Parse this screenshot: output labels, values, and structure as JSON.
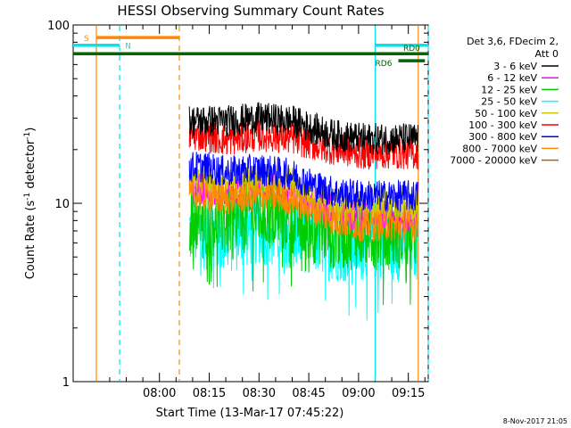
{
  "chart_data": {
    "type": "line",
    "title": "HESSI Observing Summary Count Rates",
    "xlabel": "Start Time (13-Mar-17 07:45:22)",
    "ylabel_main": "Count Rate (s",
    "ylabel_sup1": "-1",
    "ylabel_mid": " detector",
    "ylabel_sup2": "-1",
    "ylabel_end": ")",
    "y_scale": "log",
    "ylim": [
      1,
      100
    ],
    "xlim_minutes": [
      -11,
      96
    ],
    "x_ticks": [
      {
        "label": "08:00",
        "t": 15
      },
      {
        "label": "08:15",
        "t": 30
      },
      {
        "label": "08:30",
        "t": 45
      },
      {
        "label": "08:45",
        "t": 60
      },
      {
        "label": "09:00",
        "t": 75
      },
      {
        "label": "09:15",
        "t": 90
      }
    ],
    "y_ticks": [
      {
        "label": "1",
        "v": 1
      },
      {
        "label": "10",
        "v": 10
      },
      {
        "label": "100",
        "v": 100
      }
    ],
    "legend": {
      "header1": "Det 3,6, FDecim 2,",
      "header2": "Att 0"
    },
    "series": [
      {
        "name": "3 - 6 keV",
        "color": "#000000",
        "points": [
          [
            28,
            29
          ],
          [
            35,
            29
          ],
          [
            45,
            30
          ],
          [
            55,
            29
          ],
          [
            62,
            26
          ],
          [
            68,
            24
          ],
          [
            76,
            23
          ]
        ]
      },
      {
        "name": "6 - 12 keV",
        "color": "#ff00ff",
        "points": [
          [
            28,
            12
          ],
          [
            35,
            11.5
          ],
          [
            45,
            13
          ],
          [
            55,
            12
          ],
          [
            62,
            10
          ],
          [
            68,
            9
          ],
          [
            76,
            8.5
          ]
        ]
      },
      {
        "name": "12 - 25 keV",
        "color": "#00cc00",
        "points": [
          [
            28,
            8.5
          ],
          [
            35,
            8
          ],
          [
            45,
            9
          ],
          [
            55,
            8.5
          ],
          [
            62,
            7.5
          ],
          [
            68,
            7
          ],
          [
            76,
            7
          ]
        ]
      },
      {
        "name": "25 - 50 keV",
        "color": "#00ffff",
        "points": [
          [
            28,
            7
          ],
          [
            35,
            6.5
          ],
          [
            45,
            7.5
          ],
          [
            55,
            7
          ],
          [
            62,
            6.5
          ],
          [
            68,
            6
          ],
          [
            76,
            6
          ]
        ]
      },
      {
        "name": "50 - 100 keV",
        "color": "#cccc00",
        "points": [
          [
            28,
            13
          ],
          [
            35,
            12.5
          ],
          [
            45,
            14
          ],
          [
            55,
            13
          ],
          [
            62,
            11
          ],
          [
            68,
            9.5
          ],
          [
            76,
            9.5
          ]
        ]
      },
      {
        "name": "100 - 300 keV",
        "color": "#ff0000",
        "points": [
          [
            28,
            24
          ],
          [
            35,
            22.5
          ],
          [
            45,
            24
          ],
          [
            55,
            23
          ],
          [
            62,
            21
          ],
          [
            68,
            20
          ],
          [
            76,
            19
          ]
        ]
      },
      {
        "name": "300 - 800 keV",
        "color": "#0000ff",
        "points": [
          [
            28,
            16
          ],
          [
            35,
            15
          ],
          [
            45,
            15.5
          ],
          [
            55,
            14.5
          ],
          [
            62,
            12.5
          ],
          [
            68,
            11.5
          ],
          [
            76,
            11
          ]
        ]
      },
      {
        "name": "800 - 7000 keV",
        "color": "#ff8800",
        "points": [
          [
            28,
            11
          ],
          [
            35,
            10.5
          ],
          [
            45,
            11
          ],
          [
            55,
            10.5
          ],
          [
            62,
            9
          ],
          [
            68,
            8
          ],
          [
            76,
            7.5
          ]
        ]
      },
      {
        "name": "7000 - 20000 keV",
        "color": "#aa6600",
        "points": []
      }
    ],
    "status_bars": [
      {
        "name": "SAA",
        "label": "S",
        "color": "#ff8800",
        "t0": -4,
        "t1": 21,
        "v": 85
      },
      {
        "name": "Night",
        "label": "N",
        "color": "#00e5ee",
        "t0": -11,
        "t1": 3,
        "v": 77
      },
      {
        "name": "Night",
        "label": "",
        "color": "#00e5ee",
        "t0": 80,
        "t1": 96,
        "v": 77
      },
      {
        "name": "Decimation RD0",
        "label": "RD0",
        "color": "#006600",
        "t0": -11,
        "t1": 96,
        "v": 69
      },
      {
        "name": "Decimation RD6",
        "label": "RD6",
        "color": "#006600",
        "t0": 87,
        "t1": 95,
        "v": 63
      }
    ],
    "vlines": [
      {
        "t": -4,
        "color": "#ff8800",
        "dash": false
      },
      {
        "t": 3,
        "color": "#00e5ee",
        "dash": true
      },
      {
        "t": 21,
        "color": "#ff8800",
        "dash": true
      },
      {
        "t": 80,
        "color": "#00e5ee",
        "dash": false
      },
      {
        "t": 93,
        "color": "#ff8800",
        "dash": false
      },
      {
        "t": 96,
        "color": "#00e5ee",
        "dash": true
      }
    ],
    "data_window_minutes": [
      24,
      93
    ]
  },
  "footer": {
    "timestamp": "8-Nov-2017 21:05"
  }
}
